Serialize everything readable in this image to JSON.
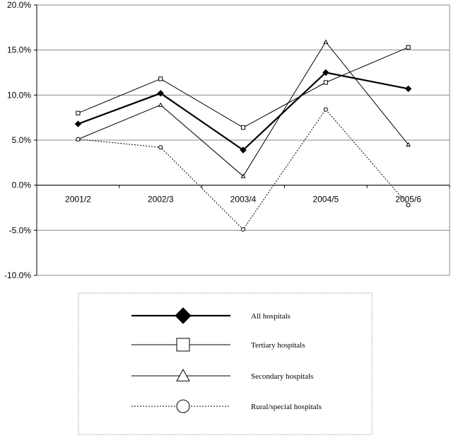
{
  "chart_data": {
    "type": "line",
    "categories": [
      "2001/2",
      "2002/3",
      "2003/4",
      "2004/5",
      "2005/6"
    ],
    "ylim": [
      -10,
      20
    ],
    "y_ticks": [
      "20.0%",
      "15.0%",
      "10.0%",
      "5.0%",
      "0.0%",
      "-5.0%",
      "-10.0%"
    ],
    "y_tick_values": [
      20,
      15,
      10,
      5,
      0,
      -5,
      -10
    ],
    "grid": true,
    "legend_position": "bottom",
    "series": [
      {
        "name": "All hospitals",
        "values": [
          6.8,
          10.2,
          3.9,
          12.5,
          10.7
        ],
        "marker": "filled-diamond",
        "line": "thick-solid",
        "color": "#000000"
      },
      {
        "name": "Tertiary hospitals",
        "values": [
          8.0,
          11.8,
          6.4,
          11.4,
          15.3
        ],
        "marker": "open-square",
        "line": "solid",
        "color": "#000000"
      },
      {
        "name": "Secondary hospitals",
        "values": [
          5.1,
          8.9,
          1.0,
          15.9,
          4.5
        ],
        "marker": "open-triangle",
        "line": "solid",
        "color": "#000000"
      },
      {
        "name": "Rural/special hospitals",
        "values": [
          5.1,
          4.2,
          -4.9,
          8.4,
          -2.2
        ],
        "marker": "open-circle",
        "line": "dotted",
        "color": "#000000"
      }
    ]
  }
}
